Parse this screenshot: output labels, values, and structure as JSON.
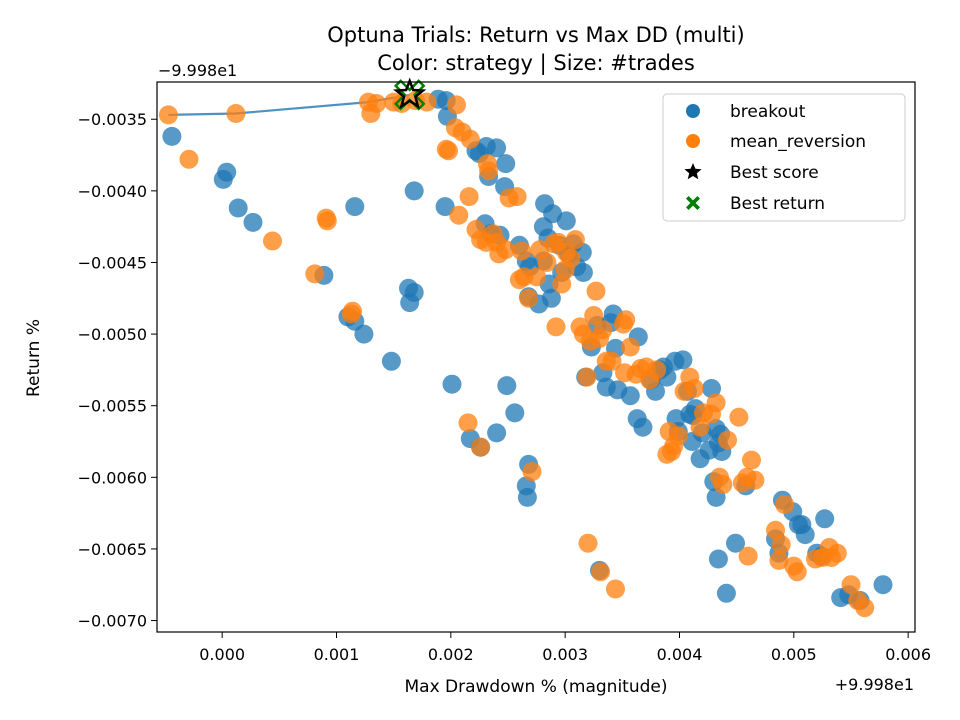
{
  "chart_data": {
    "type": "scatter",
    "title": "Optuna Trials: Return vs Max DD (multi)",
    "subtitle": "Color: strategy | Size: #trades",
    "xlabel": "Max Drawdown % (magnitude)",
    "ylabel": "Return %",
    "x_offset_label": "+9.998e1",
    "y_offset_label": "−9.998e1",
    "xlim": [
      -0.00057,
      0.00606
    ],
    "ylim": [
      -0.00708,
      -0.00324
    ],
    "x_ticks": [
      {
        "value": 0.0,
        "label": "0.000"
      },
      {
        "value": 0.001,
        "label": "0.001"
      },
      {
        "value": 0.002,
        "label": "0.002"
      },
      {
        "value": 0.003,
        "label": "0.003"
      },
      {
        "value": 0.004,
        "label": "0.004"
      },
      {
        "value": 0.005,
        "label": "0.005"
      },
      {
        "value": 0.006,
        "label": "0.006"
      }
    ],
    "y_ticks": [
      {
        "value": -0.0035,
        "label": "−0.0035"
      },
      {
        "value": -0.004,
        "label": "−0.0040"
      },
      {
        "value": -0.0045,
        "label": "−0.0045"
      },
      {
        "value": -0.005,
        "label": "−0.0050"
      },
      {
        "value": -0.0055,
        "label": "−0.0055"
      },
      {
        "value": -0.006,
        "label": "−0.0060"
      },
      {
        "value": -0.0065,
        "label": "−0.0065"
      },
      {
        "value": -0.007,
        "label": "−0.0070"
      }
    ],
    "grid": false,
    "legend_position": "top-right",
    "legend": [
      "breakout",
      "mean_reversion",
      "Best score",
      "Best return"
    ],
    "colors": {
      "breakout": "#1f77b4",
      "mean_reversion": "#ff7f0e",
      "best_score": "#000000",
      "best_return": "#008000",
      "frontier": "#1f77b4"
    },
    "series": [
      {
        "name": "breakout",
        "points": [
          [
            -0.00044,
            -0.00362
          ],
          [
            1e-05,
            -0.00392
          ],
          [
            4e-05,
            -0.00387
          ],
          [
            0.00014,
            -0.00412
          ],
          [
            0.00027,
            -0.00422
          ],
          [
            0.00089,
            -0.00459
          ],
          [
            0.0011,
            -0.00488
          ],
          [
            0.00116,
            -0.00491
          ],
          [
            0.00116,
            -0.00411
          ],
          [
            0.00124,
            -0.005
          ],
          [
            0.00148,
            -0.00519
          ],
          [
            0.00163,
            -0.00468
          ],
          [
            0.00164,
            -0.00478
          ],
          [
            0.00168,
            -0.00471
          ],
          [
            0.00168,
            -0.004
          ],
          [
            0.00189,
            -0.00336
          ],
          [
            0.00196,
            -0.00337
          ],
          [
            0.00195,
            -0.00411
          ],
          [
            0.00197,
            -0.00348
          ],
          [
            0.00201,
            -0.00535
          ],
          [
            0.00217,
            -0.00573
          ],
          [
            0.00226,
            -0.00579
          ],
          [
            0.00222,
            -0.00372
          ],
          [
            0.00225,
            -0.00374
          ],
          [
            0.00231,
            -0.00369
          ],
          [
            0.0023,
            -0.00423
          ],
          [
            0.00233,
            -0.0039
          ],
          [
            0.00235,
            -0.0043
          ],
          [
            0.0024,
            -0.0037
          ],
          [
            0.0024,
            -0.00569
          ],
          [
            0.00243,
            -0.00431
          ],
          [
            0.00247,
            -0.00397
          ],
          [
            0.00248,
            -0.00381
          ],
          [
            0.00249,
            -0.00536
          ],
          [
            0.00256,
            -0.00555
          ],
          [
            0.0026,
            -0.00438
          ],
          [
            0.00266,
            -0.00449
          ],
          [
            0.00266,
            -0.00606
          ],
          [
            0.00267,
            -0.00614
          ],
          [
            0.00268,
            -0.00591
          ],
          [
            0.00269,
            -0.00453
          ],
          [
            0.00268,
            -0.00474
          ],
          [
            0.00277,
            -0.00479
          ],
          [
            0.00281,
            -0.00449
          ],
          [
            0.00281,
            -0.00425
          ],
          [
            0.00282,
            -0.00409
          ],
          [
            0.00285,
            -0.00433
          ],
          [
            0.00286,
            -0.00465
          ],
          [
            0.00288,
            -0.00475
          ],
          [
            0.00289,
            -0.00416
          ],
          [
            0.00295,
            -0.00438
          ],
          [
            0.00297,
            -0.00457
          ],
          [
            0.00301,
            -0.00421
          ],
          [
            0.00303,
            -0.00444
          ],
          [
            0.00307,
            -0.00437
          ],
          [
            0.0031,
            -0.00453
          ],
          [
            0.00315,
            -0.00443
          ],
          [
            0.00316,
            -0.00457
          ],
          [
            0.00318,
            -0.0053
          ],
          [
            0.00323,
            -0.00509
          ],
          [
            0.00328,
            -0.00494
          ],
          [
            0.0033,
            -0.00665
          ],
          [
            0.00333,
            -0.00527
          ],
          [
            0.00336,
            -0.00537
          ],
          [
            0.0034,
            -0.00492
          ],
          [
            0.00342,
            -0.00486
          ],
          [
            0.00344,
            -0.0051
          ],
          [
            0.00346,
            -0.00539
          ],
          [
            0.00357,
            -0.00543
          ],
          [
            0.00363,
            -0.00559
          ],
          [
            0.00364,
            -0.00502
          ],
          [
            0.00368,
            -0.00565
          ],
          [
            0.00375,
            -0.00532
          ],
          [
            0.00379,
            -0.0054
          ],
          [
            0.00383,
            -0.00525
          ],
          [
            0.00386,
            -0.00523
          ],
          [
            0.00389,
            -0.0053
          ],
          [
            0.00396,
            -0.00519
          ],
          [
            0.00397,
            -0.00559
          ],
          [
            0.00399,
            -0.00568
          ],
          [
            0.00403,
            -0.00518
          ],
          [
            0.00407,
            -0.0054
          ],
          [
            0.00409,
            -0.00556
          ],
          [
            0.00411,
            -0.00575
          ],
          [
            0.00412,
            -0.00557
          ],
          [
            0.00414,
            -0.00552
          ],
          [
            0.00418,
            -0.00587
          ],
          [
            0.0042,
            -0.00569
          ],
          [
            0.00426,
            -0.00581
          ],
          [
            0.00428,
            -0.00538
          ],
          [
            0.0043,
            -0.00603
          ],
          [
            0.00432,
            -0.00614
          ],
          [
            0.00432,
            -0.00566
          ],
          [
            0.00434,
            -0.00576
          ],
          [
            0.00434,
            -0.00657
          ],
          [
            0.00436,
            -0.0057
          ],
          [
            0.00437,
            -0.00582
          ],
          [
            0.00441,
            -0.00681
          ],
          [
            0.00449,
            -0.00646
          ],
          [
            0.00458,
            -0.00606
          ],
          [
            0.00484,
            -0.00643
          ],
          [
            0.00487,
            -0.00653
          ],
          [
            0.0049,
            -0.00616
          ],
          [
            0.00499,
            -0.00624
          ],
          [
            0.00504,
            -0.00633
          ],
          [
            0.00507,
            -0.00633
          ],
          [
            0.0051,
            -0.0064
          ],
          [
            0.0052,
            -0.00653
          ],
          [
            0.00524,
            -0.00655
          ],
          [
            0.00527,
            -0.00629
          ],
          [
            0.00541,
            -0.00684
          ],
          [
            0.00548,
            -0.00682
          ],
          [
            0.00558,
            -0.00686
          ],
          [
            0.00578,
            -0.00675
          ]
        ]
      },
      {
        "name": "mean_reversion",
        "points": [
          [
            -0.00047,
            -0.00347
          ],
          [
            -0.00029,
            -0.00378
          ],
          [
            0.00012,
            -0.00346
          ],
          [
            0.00044,
            -0.00435
          ],
          [
            0.00081,
            -0.00458
          ],
          [
            0.00091,
            -0.00419
          ],
          [
            0.00092,
            -0.00421
          ],
          [
            0.00113,
            -0.00486
          ],
          [
            0.00114,
            -0.00484
          ],
          [
            0.00128,
            -0.00338
          ],
          [
            0.0013,
            -0.00346
          ],
          [
            0.00135,
            -0.00339
          ],
          [
            0.0015,
            -0.00338
          ],
          [
            0.00157,
            -0.00339
          ],
          [
            0.00169,
            -0.00337
          ],
          [
            0.00179,
            -0.00338
          ],
          [
            0.00196,
            -0.00371
          ],
          [
            0.00198,
            -0.00372
          ],
          [
            0.00204,
            -0.00356
          ],
          [
            0.00205,
            -0.0034
          ],
          [
            0.00207,
            -0.00417
          ],
          [
            0.0021,
            -0.00359
          ],
          [
            0.00215,
            -0.00562
          ],
          [
            0.00216,
            -0.00404
          ],
          [
            0.00217,
            -0.00364
          ],
          [
            0.00222,
            -0.00427
          ],
          [
            0.00226,
            -0.00579
          ],
          [
            0.00226,
            -0.00434
          ],
          [
            0.00231,
            -0.00436
          ],
          [
            0.00232,
            -0.00381
          ],
          [
            0.00233,
            -0.00386
          ],
          [
            0.00237,
            -0.0043
          ],
          [
            0.0024,
            -0.00436
          ],
          [
            0.00242,
            -0.00444
          ],
          [
            0.00248,
            -0.00441
          ],
          [
            0.00251,
            -0.00405
          ],
          [
            0.00258,
            -0.00404
          ],
          [
            0.0026,
            -0.00462
          ],
          [
            0.00262,
            -0.00442
          ],
          [
            0.00264,
            -0.0046
          ],
          [
            0.00268,
            -0.00475
          ],
          [
            0.00271,
            -0.00596
          ],
          [
            0.00275,
            -0.0046
          ],
          [
            0.00278,
            -0.00441
          ],
          [
            0.00284,
            -0.0045
          ],
          [
            0.0029,
            -0.00437
          ],
          [
            0.00292,
            -0.00495
          ],
          [
            0.00294,
            -0.00436
          ],
          [
            0.00297,
            -0.00465
          ],
          [
            0.003,
            -0.00455
          ],
          [
            0.00301,
            -0.00443
          ],
          [
            0.00305,
            -0.00447
          ],
          [
            0.00309,
            -0.00434
          ],
          [
            0.00313,
            -0.00495
          ],
          [
            0.00316,
            -0.005
          ],
          [
            0.00319,
            -0.0053
          ],
          [
            0.0032,
            -0.00646
          ],
          [
            0.00322,
            -0.00505
          ],
          [
            0.00325,
            -0.00487
          ],
          [
            0.00327,
            -0.0047
          ],
          [
            0.0033,
            -0.00503
          ],
          [
            0.00331,
            -0.00666
          ],
          [
            0.00333,
            -0.00497
          ],
          [
            0.00336,
            -0.00519
          ],
          [
            0.00341,
            -0.00519
          ],
          [
            0.00344,
            -0.00678
          ],
          [
            0.00351,
            -0.00493
          ],
          [
            0.00352,
            -0.00527
          ],
          [
            0.00353,
            -0.0049
          ],
          [
            0.00357,
            -0.00509
          ],
          [
            0.00362,
            -0.00528
          ],
          [
            0.00366,
            -0.00524
          ],
          [
            0.00371,
            -0.00523
          ],
          [
            0.00374,
            -0.00532
          ],
          [
            0.0038,
            -0.00525
          ],
          [
            0.00389,
            -0.00584
          ],
          [
            0.00391,
            -0.00568
          ],
          [
            0.00393,
            -0.00582
          ],
          [
            0.00395,
            -0.00578
          ],
          [
            0.00399,
            -0.00571
          ],
          [
            0.00404,
            -0.0054
          ],
          [
            0.00409,
            -0.0053
          ],
          [
            0.00413,
            -0.00538
          ],
          [
            0.00418,
            -0.00565
          ],
          [
            0.00421,
            -0.00555
          ],
          [
            0.00428,
            -0.00556
          ],
          [
            0.00432,
            -0.00548
          ],
          [
            0.00435,
            -0.006
          ],
          [
            0.00438,
            -0.00605
          ],
          [
            0.00442,
            -0.00574
          ],
          [
            0.00452,
            -0.00558
          ],
          [
            0.00455,
            -0.00604
          ],
          [
            0.00459,
            -0.006
          ],
          [
            0.0046,
            -0.00655
          ],
          [
            0.00463,
            -0.00588
          ],
          [
            0.00466,
            -0.00602
          ],
          [
            0.00484,
            -0.00637
          ],
          [
            0.00487,
            -0.00658
          ],
          [
            0.00489,
            -0.00647
          ],
          [
            0.00492,
            -0.00619
          ],
          [
            0.005,
            -0.00662
          ],
          [
            0.00503,
            -0.00666
          ],
          [
            0.00519,
            -0.00657
          ],
          [
            0.00525,
            -0.00656
          ],
          [
            0.00531,
            -0.00649
          ],
          [
            0.00533,
            -0.00656
          ],
          [
            0.00538,
            -0.00653
          ],
          [
            0.0055,
            -0.00675
          ],
          [
            0.00556,
            -0.00686
          ],
          [
            0.00562,
            -0.00691
          ]
        ]
      }
    ],
    "frontier_line": [
      [
        -0.00047,
        -0.00347
      ],
      [
        0.00012,
        -0.00346
      ],
      [
        0.00128,
        -0.00338
      ],
      [
        0.00164,
        -0.00333
      ]
    ],
    "best_score": [
      0.00164,
      -0.00333
    ],
    "best_return": [
      0.00164,
      -0.00333
    ]
  }
}
